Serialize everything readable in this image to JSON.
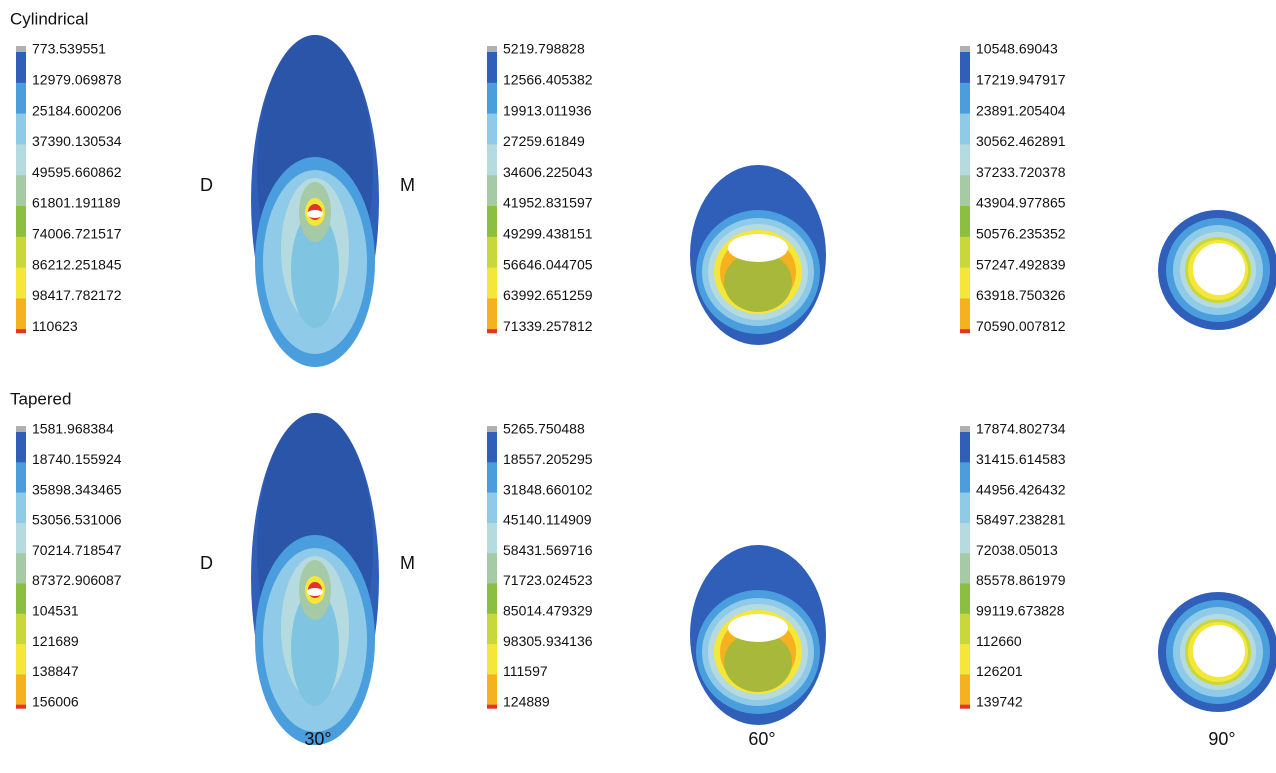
{
  "rows": [
    {
      "title": "Cylindrical",
      "left_label": "D",
      "right_label": "M",
      "panels": [
        {
          "legend": [
            "773.539551",
            "12979.069878",
            "25184.600206",
            "37390.130534",
            "49595.660862",
            "61801.191189",
            "74006.721517",
            "86212.251845",
            "98417.782172",
            "110623"
          ]
        },
        {
          "legend": [
            "5219.798828",
            "12566.405382",
            "19913.011936",
            "27259.61849",
            "34606.225043",
            "41952.831597",
            "49299.438151",
            "56646.044705",
            "63992.651259",
            "71339.257812"
          ]
        },
        {
          "legend": [
            "10548.69043",
            "17219.947917",
            "23891.205404",
            "30562.462891",
            "37233.720378",
            "43904.977865",
            "50576.235352",
            "57247.492839",
            "63918.750326",
            "70590.007812"
          ]
        }
      ]
    },
    {
      "title": "Tapered",
      "left_label": "D",
      "right_label": "M",
      "panels": [
        {
          "legend": [
            "1581.968384",
            "18740.155924",
            "35898.343465",
            "53056.531006",
            "70214.718547",
            "87372.906087",
            "104531",
            "121689",
            "138847",
            "156006"
          ]
        },
        {
          "legend": [
            "5265.750488",
            "18557.205295",
            "31848.660102",
            "45140.114909",
            "58431.569716",
            "71723.024523",
            "85014.479329",
            "98305.934136",
            "111597",
            "124889"
          ]
        },
        {
          "legend": [
            "17874.802734",
            "31415.614583",
            "44956.426432",
            "58497.238281",
            "72038.05013",
            "85578.861979",
            "99119.673828",
            "112660",
            "126201",
            "139742"
          ]
        }
      ]
    }
  ],
  "angles": [
    "30°",
    "60°",
    "90°"
  ]
}
